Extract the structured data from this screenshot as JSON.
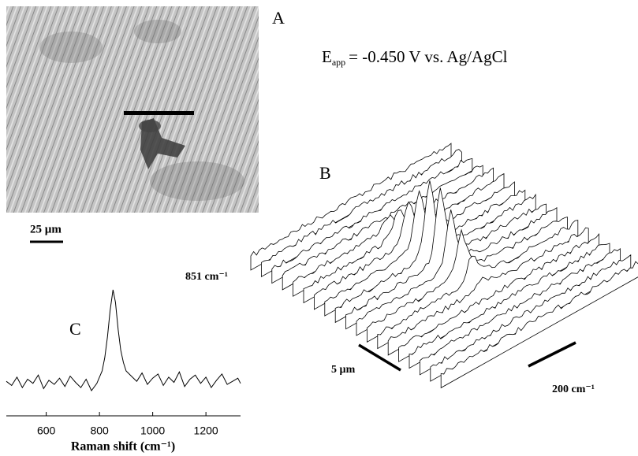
{
  "panels": {
    "a": {
      "label": "A",
      "scale_bar": "25 µm"
    },
    "b": {
      "label": "B",
      "scale_bar_position": "5 µm",
      "scale_bar_shift": "200 cm⁻¹"
    },
    "c": {
      "label": "C"
    }
  },
  "potential": {
    "symbol": "E",
    "subscript": "app",
    "text": "= -0.450 V vs. Ag/AgCl"
  },
  "chart_data": {
    "type": "line",
    "x": [
      450,
      470,
      490,
      510,
      530,
      550,
      570,
      590,
      610,
      630,
      650,
      670,
      690,
      710,
      730,
      750,
      770,
      790,
      800,
      810,
      820,
      830,
      840,
      851,
      860,
      870,
      880,
      890,
      900,
      920,
      940,
      960,
      980,
      1000,
      1020,
      1040,
      1060,
      1080,
      1100,
      1120,
      1140,
      1160,
      1180,
      1200,
      1220,
      1240,
      1260,
      1280,
      1300,
      1320,
      1330
    ],
    "values": [
      12,
      8,
      16,
      6,
      14,
      10,
      18,
      5,
      13,
      9,
      15,
      7,
      17,
      11,
      6,
      14,
      3,
      10,
      16,
      22,
      35,
      55,
      80,
      100,
      88,
      62,
      42,
      30,
      22,
      17,
      12,
      20,
      9,
      15,
      19,
      8,
      16,
      11,
      21,
      7,
      14,
      18,
      10,
      16,
      6,
      13,
      19,
      9,
      12,
      15,
      10
    ],
    "xlim": [
      450,
      1330
    ],
    "xticks": [
      600,
      800,
      1000,
      1200
    ],
    "xlabel": "Raman shift (cm⁻¹)",
    "annotation": "851 cm⁻¹",
    "color": "#000000"
  }
}
